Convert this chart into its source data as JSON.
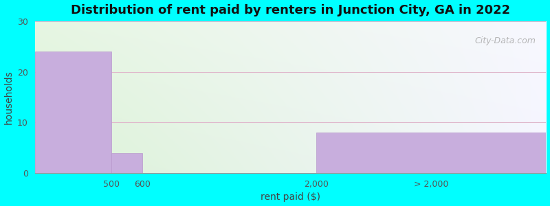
{
  "title": "Distribution of rent paid by renters in Junction City, GA in 2022",
  "xlabel": "rent paid ($)",
  "ylabel": "households",
  "background_color": "#00FFFF",
  "bar_color": "#c8aedd",
  "ylim": [
    0,
    30
  ],
  "yticks": [
    0,
    10,
    20,
    30
  ],
  "xlim": [
    0,
    10
  ],
  "bars": [
    {
      "x_left": 0.0,
      "x_right": 1.5,
      "height": 24
    },
    {
      "x_left": 1.5,
      "x_right": 2.1,
      "height": 4
    },
    {
      "x_left": 5.5,
      "x_right": 10.0,
      "height": 8
    }
  ],
  "xtick_positions": [
    1.5,
    2.1,
    5.5,
    7.75
  ],
  "xtick_labels": [
    "500",
    "600",
    "2,000",
    "> 2,000"
  ],
  "title_fontsize": 13,
  "axis_label_fontsize": 10,
  "tick_fontsize": 9,
  "watermark_text": "City-Data.com",
  "grid_color": "#e8c8d8",
  "gradient_colors_left": [
    "#d8f0d0",
    "#eef8e8"
  ],
  "gradient_colors_right": [
    "#f8f8ff",
    "#ffffff"
  ]
}
